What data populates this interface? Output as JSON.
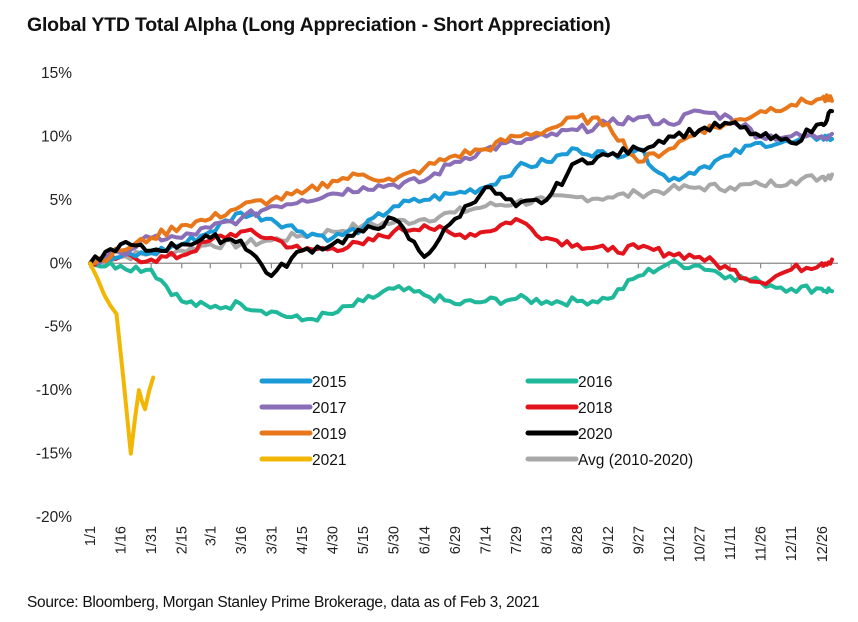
{
  "chart_data": {
    "type": "line",
    "title": "Global YTD Total Alpha (Long Appreciation - Short Appreciation)",
    "xlabel": "",
    "ylabel": "",
    "ylim": [
      -20,
      15
    ],
    "ytick_labels": [
      "15%",
      "10%",
      "5%",
      "0%",
      "-5%",
      "-10%",
      "-15%",
      "-20%"
    ],
    "ytick_values": [
      15,
      10,
      5,
      0,
      -5,
      -10,
      -15,
      -20
    ],
    "x": [
      "1/1",
      "1/16",
      "1/31",
      "2/15",
      "3/1",
      "3/16",
      "3/31",
      "4/15",
      "4/30",
      "5/15",
      "5/30",
      "6/14",
      "6/29",
      "7/14",
      "7/29",
      "8/13",
      "8/28",
      "9/12",
      "9/27",
      "10/12",
      "10/27",
      "11/11",
      "11/26",
      "12/11",
      "12/26",
      "12/31"
    ],
    "xtick_labels": [
      "1/1",
      "1/16",
      "1/31",
      "2/15",
      "3/1",
      "3/16",
      "3/31",
      "4/15",
      "4/30",
      "5/15",
      "5/30",
      "6/14",
      "6/29",
      "7/14",
      "7/29",
      "8/13",
      "8/28",
      "9/12",
      "9/27",
      "10/12",
      "10/27",
      "11/11",
      "11/26",
      "12/11",
      "12/26"
    ],
    "grid": false,
    "legend_position": "center",
    "series": [
      {
        "name": "2015",
        "color": "#1a9ad6",
        "values": [
          0,
          0.5,
          0.8,
          1.5,
          2.5,
          4,
          3.5,
          2.5,
          2,
          2.8,
          4.5,
          5,
          5.5,
          6,
          7.5,
          8,
          9,
          8.5,
          9,
          6.5,
          7.5,
          8.5,
          9.5,
          9.5,
          10,
          9.8
        ]
      },
      {
        "name": "2016",
        "color": "#1fb89a",
        "values": [
          0,
          -0.2,
          -0.5,
          -3,
          -3.5,
          -3.2,
          -3.8,
          -4.5,
          -4,
          -3,
          -2,
          -2.5,
          -3.2,
          -3,
          -2.8,
          -3,
          -3,
          -2.8,
          -1,
          0,
          -0.2,
          -1,
          -1.5,
          -2,
          -2,
          -2.2
        ]
      },
      {
        "name": "2017",
        "color": "#8a6fb8",
        "values": [
          0,
          0.8,
          2,
          2,
          2.8,
          3.5,
          4.5,
          5,
          5.5,
          6,
          6.2,
          6.5,
          8,
          9,
          9.5,
          10,
          10.5,
          11,
          11.5,
          11,
          12,
          11.5,
          10,
          10,
          10,
          10.2
        ]
      },
      {
        "name": "2018",
        "color": "#e2131b",
        "values": [
          0,
          0.5,
          0.3,
          0.6,
          1.8,
          2.5,
          2,
          1,
          1.2,
          1.5,
          2.5,
          3,
          2.2,
          2.5,
          3.5,
          2,
          1.5,
          1,
          1.2,
          0.8,
          0.5,
          -0.5,
          -1.5,
          -0.5,
          0,
          0.3
        ]
      },
      {
        "name": "2019",
        "color": "#e8771b",
        "values": [
          0,
          1,
          2,
          3,
          3.5,
          4.5,
          5,
          5.5,
          6.5,
          7,
          6.5,
          7.5,
          8.5,
          9,
          10,
          10.5,
          11.5,
          11,
          8,
          9,
          10.5,
          11,
          12,
          12.5,
          13,
          12.8
        ]
      },
      {
        "name": "2020",
        "color": "#000000",
        "values": [
          0,
          1.5,
          1,
          1.5,
          2,
          1.8,
          -1,
          1,
          1.5,
          2.5,
          3.5,
          0.5,
          3.5,
          6,
          4.5,
          5,
          8,
          8.5,
          9,
          10,
          10.5,
          11,
          10,
          9.5,
          11,
          12
        ]
      },
      {
        "name": "2021",
        "color": "#f2b705",
        "values": [
          0,
          -2.5,
          -4,
          -15,
          -10,
          -11.5,
          -9
        ],
        "x_override": [
          "1/1",
          "1/8",
          "1/14",
          "1/21",
          "1/25",
          "1/28",
          "2/1"
        ]
      },
      {
        "name": "Avg (2010-2020)",
        "color": "#a8a8a8",
        "values": [
          0,
          0.5,
          0.8,
          1,
          1.5,
          1.5,
          1.8,
          2.2,
          2.5,
          3,
          3.2,
          3.5,
          4,
          4.5,
          4.8,
          5,
          5.2,
          5.2,
          5.5,
          5.8,
          6,
          6,
          6.2,
          6.5,
          6.8,
          7
        ]
      }
    ],
    "legend": [
      "2015",
      "2016",
      "2017",
      "2018",
      "2019",
      "2020",
      "2021",
      "Avg (2010-2020)"
    ]
  },
  "source": "Source: Bloomberg, Morgan Stanley Prime Brokerage, data as of Feb 3, 2021"
}
